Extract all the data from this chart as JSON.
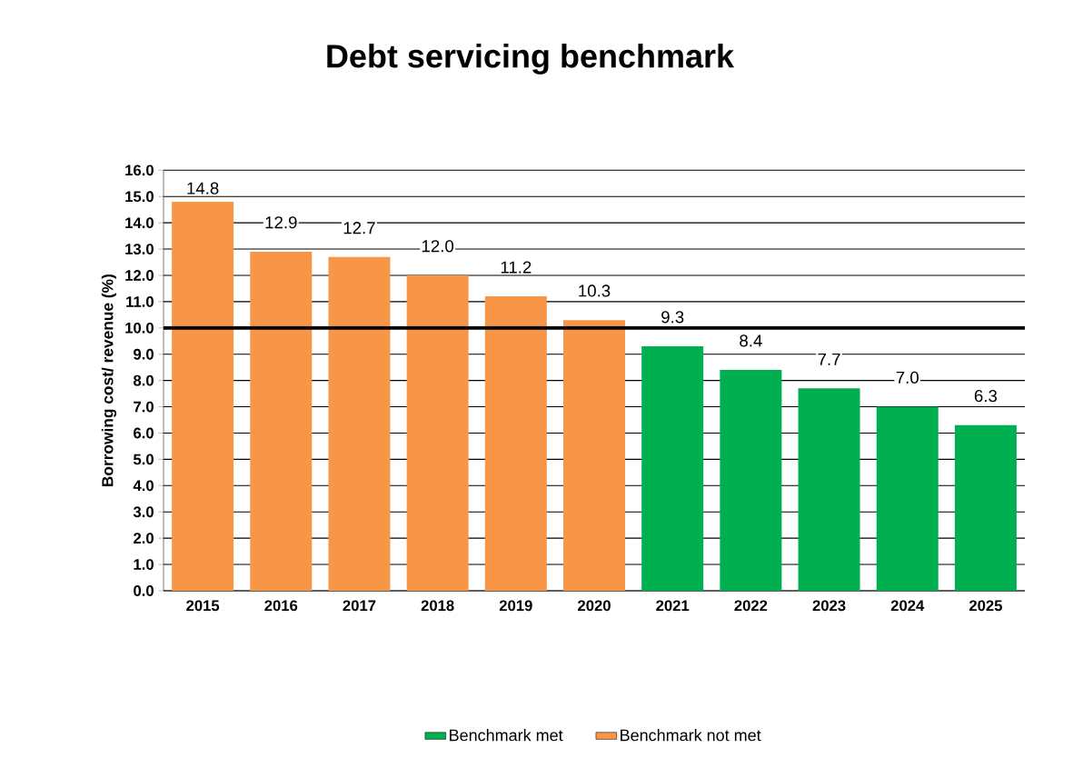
{
  "chart_data": {
    "type": "bar",
    "title": "Debt servicing benchmark",
    "ylabel": "Borrowing cost/ revenue (%)",
    "categories": [
      "2015",
      "2016",
      "2017",
      "2018",
      "2019",
      "2020",
      "2021",
      "2022",
      "2023",
      "2024",
      "2025"
    ],
    "series": [
      {
        "name": "Benchmark met",
        "color": "#00b050",
        "values": [
          null,
          null,
          null,
          null,
          null,
          null,
          9.3,
          8.4,
          7.7,
          7.0,
          6.3
        ],
        "value_labels": [
          null,
          null,
          null,
          null,
          null,
          null,
          "9.3",
          "8.4",
          "7.7",
          "7.0",
          "6.3"
        ]
      },
      {
        "name": "Benchmark not met",
        "color": "#f79646",
        "values": [
          14.8,
          12.9,
          12.7,
          12.0,
          11.2,
          10.3,
          null,
          null,
          null,
          null,
          null
        ],
        "value_labels": [
          "14.8",
          "12.9",
          "12.7",
          "12.0",
          "11.2",
          "10.3",
          null,
          null,
          null,
          null,
          null
        ]
      }
    ],
    "ylim": [
      0,
      16
    ],
    "yticks": [
      {
        "value": 0,
        "label": "0.0"
      },
      {
        "value": 1,
        "label": "1.0"
      },
      {
        "value": 2,
        "label": "2.0"
      },
      {
        "value": 3,
        "label": "3.0"
      },
      {
        "value": 4,
        "label": "4.0"
      },
      {
        "value": 5,
        "label": "5.0"
      },
      {
        "value": 6,
        "label": "6.0"
      },
      {
        "value": 7,
        "label": "7.0"
      },
      {
        "value": 8,
        "label": "8.0"
      },
      {
        "value": 9,
        "label": "9.0"
      },
      {
        "value": 10,
        "label": "10.0"
      },
      {
        "value": 11,
        "label": "11.0"
      },
      {
        "value": 12,
        "label": "12.0"
      },
      {
        "value": 13,
        "label": "13.0"
      },
      {
        "value": 14,
        "label": "14.0"
      },
      {
        "value": 15,
        "label": "15.0"
      },
      {
        "value": 16,
        "label": "16.0"
      }
    ],
    "ref_lines": [
      {
        "axis": "y",
        "value": 10,
        "color": "#000000"
      }
    ],
    "grid": "y",
    "legend": "bottom"
  }
}
